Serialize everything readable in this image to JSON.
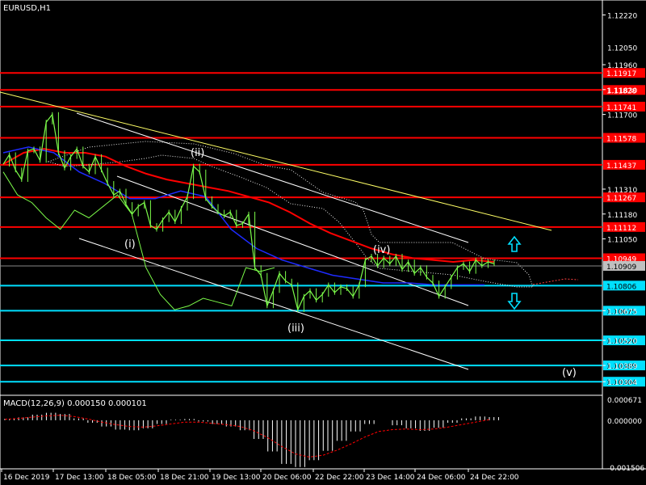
{
  "chart_title": "EURUSD,H1",
  "macd_label": "MACD(12,26,9) 0.000150 0.000101",
  "colors": {
    "bg": "#000000",
    "price": "#7CFC4A",
    "red": "#FF0000",
    "cyan": "#00E0FF",
    "yellow": "#FFFF66",
    "white": "#FFFFFF",
    "blue": "#1E2BFF",
    "cloud": "#FFFFFF",
    "macd_bar": "#FFFFFF",
    "signal": "#FF0000"
  },
  "price_axis_labels": [
    "1.12220",
    "1.11960",
    "1.11830",
    "1.11700",
    "1.11310",
    "1.11180",
    "1.11050",
    "1.10909",
    "1.10675",
    "1.10520",
    "1.10389",
    "1.10304"
  ],
  "price_axis_labels_partial": [
    "1.12050"
  ],
  "macd_axis_labels": [
    "0.000671",
    "0.000000",
    "-0.001506"
  ],
  "time_labels": [
    "16 Dec 2019",
    "17 Dec 13:00",
    "18 Dec 05:00",
    "18 Dec 21:00",
    "19 Dec 13:00",
    "20 Dec 06:00",
    "22 Dec 22:00",
    "23 Dec 14:00",
    "24 Dec 06:00",
    "24 Dec 22:00"
  ],
  "wave_labels": [
    "(i)",
    "(ii)",
    "(iii)",
    "(iv)",
    "(v)"
  ],
  "chart_data": {
    "type": "line",
    "symbol": "EURUSD",
    "timeframe": "H1",
    "ylim": [
      1.1025,
      1.1226
    ],
    "current_price": 1.10909,
    "resistance_levels_red": [
      1.11917,
      1.11828,
      1.11741,
      1.11578,
      1.11437,
      1.11267,
      1.11112,
      1.10949
    ],
    "support_levels_cyan": [
      1.10806,
      1.10675,
      1.1052,
      1.10389,
      1.10304
    ],
    "price_series": [
      1.1144,
      1.1149,
      1.1141,
      1.1136,
      1.1151,
      1.1152,
      1.1146,
      1.1166,
      1.117,
      1.115,
      1.1142,
      1.1148,
      1.1152,
      1.1143,
      1.114,
      1.1148,
      1.1141,
      1.1134,
      1.1128,
      1.113,
      1.1123,
      1.1118,
      1.1122,
      1.1124,
      1.1112,
      1.111,
      1.1115,
      1.1119,
      1.1114,
      1.1121,
      1.1127,
      1.1143,
      1.114,
      1.1126,
      1.1122,
      1.1119,
      1.1117,
      1.1119,
      1.1112,
      1.1113,
      1.1118,
      1.109,
      1.1086,
      1.107,
      1.1078,
      1.1087,
      1.1083,
      1.1081,
      1.1068,
      1.1075,
      1.1078,
      1.1073,
      1.1076,
      1.1081,
      1.1077,
      1.108,
      1.1079,
      1.1075,
      1.1081,
      1.1094,
      1.1096,
      1.1091,
      1.1095,
      1.1092,
      1.1096,
      1.1089,
      1.1093,
      1.1087,
      1.109,
      1.1085,
      1.1082,
      1.1075,
      1.108,
      1.1085,
      1.109,
      1.1092,
      1.1088,
      1.1094,
      1.1091,
      1.1093,
      1.1092
    ],
    "ma_red": [
      1.1144,
      1.115,
      1.1152,
      1.115,
      1.115,
      1.1148,
      1.1143,
      1.1139,
      1.1136,
      1.1134,
      1.1132,
      1.113,
      1.1127,
      1.1124,
      1.1119,
      1.1113,
      1.1108,
      1.1104,
      1.11,
      1.1097,
      1.1095,
      1.1094,
      1.1093,
      1.1094,
      1.1093
    ],
    "ma_blue": [
      1.115,
      1.1153,
      1.115,
      1.114,
      1.1134,
      1.1126,
      1.1126,
      1.113,
      1.1127,
      1.111,
      1.11,
      1.1094,
      1.109,
      1.1086,
      1.1084,
      1.1082,
      1.1082,
      1.1081,
      1.1081,
      1.1081
    ],
    "macd_values": [
      5e-05,
      9e-05,
      0.00018,
      0.00024,
      0.0002,
      6e-05,
      -8e-05,
      -0.0002,
      -0.0003,
      -0.00032,
      -0.00026,
      -0.00012,
      2e-05,
      4e-05,
      -4e-05,
      -0.00012,
      -0.0002,
      -0.00032,
      -0.0006,
      -0.001,
      -0.0014,
      -0.0015,
      -0.00128,
      -0.00098,
      -0.00066,
      -0.00036,
      -0.00012,
      0.0,
      -0.00016,
      -0.00026,
      -0.00034,
      -0.00024,
      -8e-05,
      6e-05,
      0.00012,
      0.0001
    ],
    "macd_signal": [
      3e-05,
      6e-05,
      0.0001,
      0.00014,
      0.00016,
      0.00012,
      4e-05,
      -6e-05,
      -0.00014,
      -0.0002,
      -0.00022,
      -0.00018,
      -0.00012,
      -6e-05,
      -6e-05,
      -0.0001,
      -0.00014,
      -0.0002,
      -0.00034,
      -0.00056,
      -0.00084,
      -0.00108,
      -0.00118,
      -0.00112,
      -0.00096,
      -0.00076,
      -0.00054,
      -0.00036,
      -0.0003,
      -0.00028,
      -0.0003,
      -0.00028,
      -0.00022,
      -0.00014,
      -6e-05,
      2e-05
    ]
  }
}
